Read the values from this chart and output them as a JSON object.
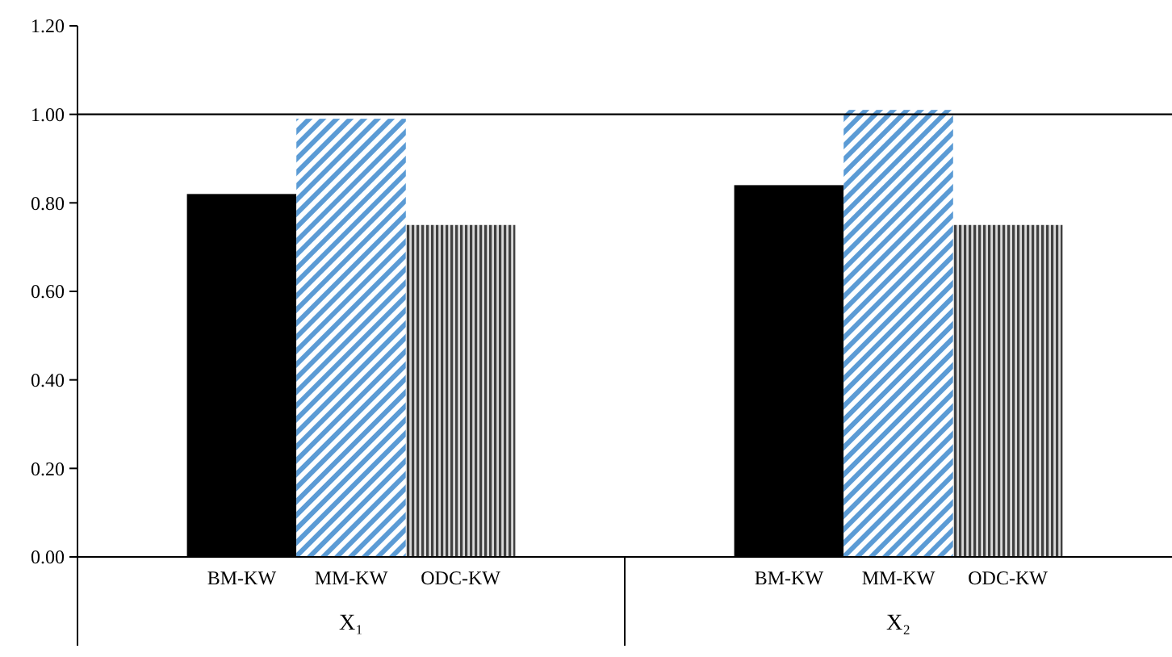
{
  "chart_data": {
    "type": "bar",
    "categories": [
      "X₁",
      "X₂"
    ],
    "series": [
      {
        "name": "BM-KW",
        "color": "#000000",
        "values": [
          0.82,
          0.84
        ]
      },
      {
        "name": "MM-KW",
        "color": "#5b9bd5",
        "values": [
          0.99,
          1.01
        ]
      },
      {
        "name": "ODC-KW",
        "color": "#404040",
        "values": [
          0.75,
          0.75
        ]
      }
    ],
    "ylim": [
      0,
      1.2
    ],
    "yticks": [
      {
        "value": 0,
        "label": "0.00"
      },
      {
        "value": 0.2,
        "label": "0.20"
      },
      {
        "value": 0.4,
        "label": "0.40"
      },
      {
        "value": 0.6,
        "label": "0.60"
      },
      {
        "value": 0.8,
        "label": "0.80"
      },
      {
        "value": 1,
        "label": "1.00"
      },
      {
        "value": 1.2,
        "label": "1.20"
      }
    ],
    "ref_lines": [
      {
        "axis": "y",
        "value": 1
      }
    ],
    "grid": false
  }
}
